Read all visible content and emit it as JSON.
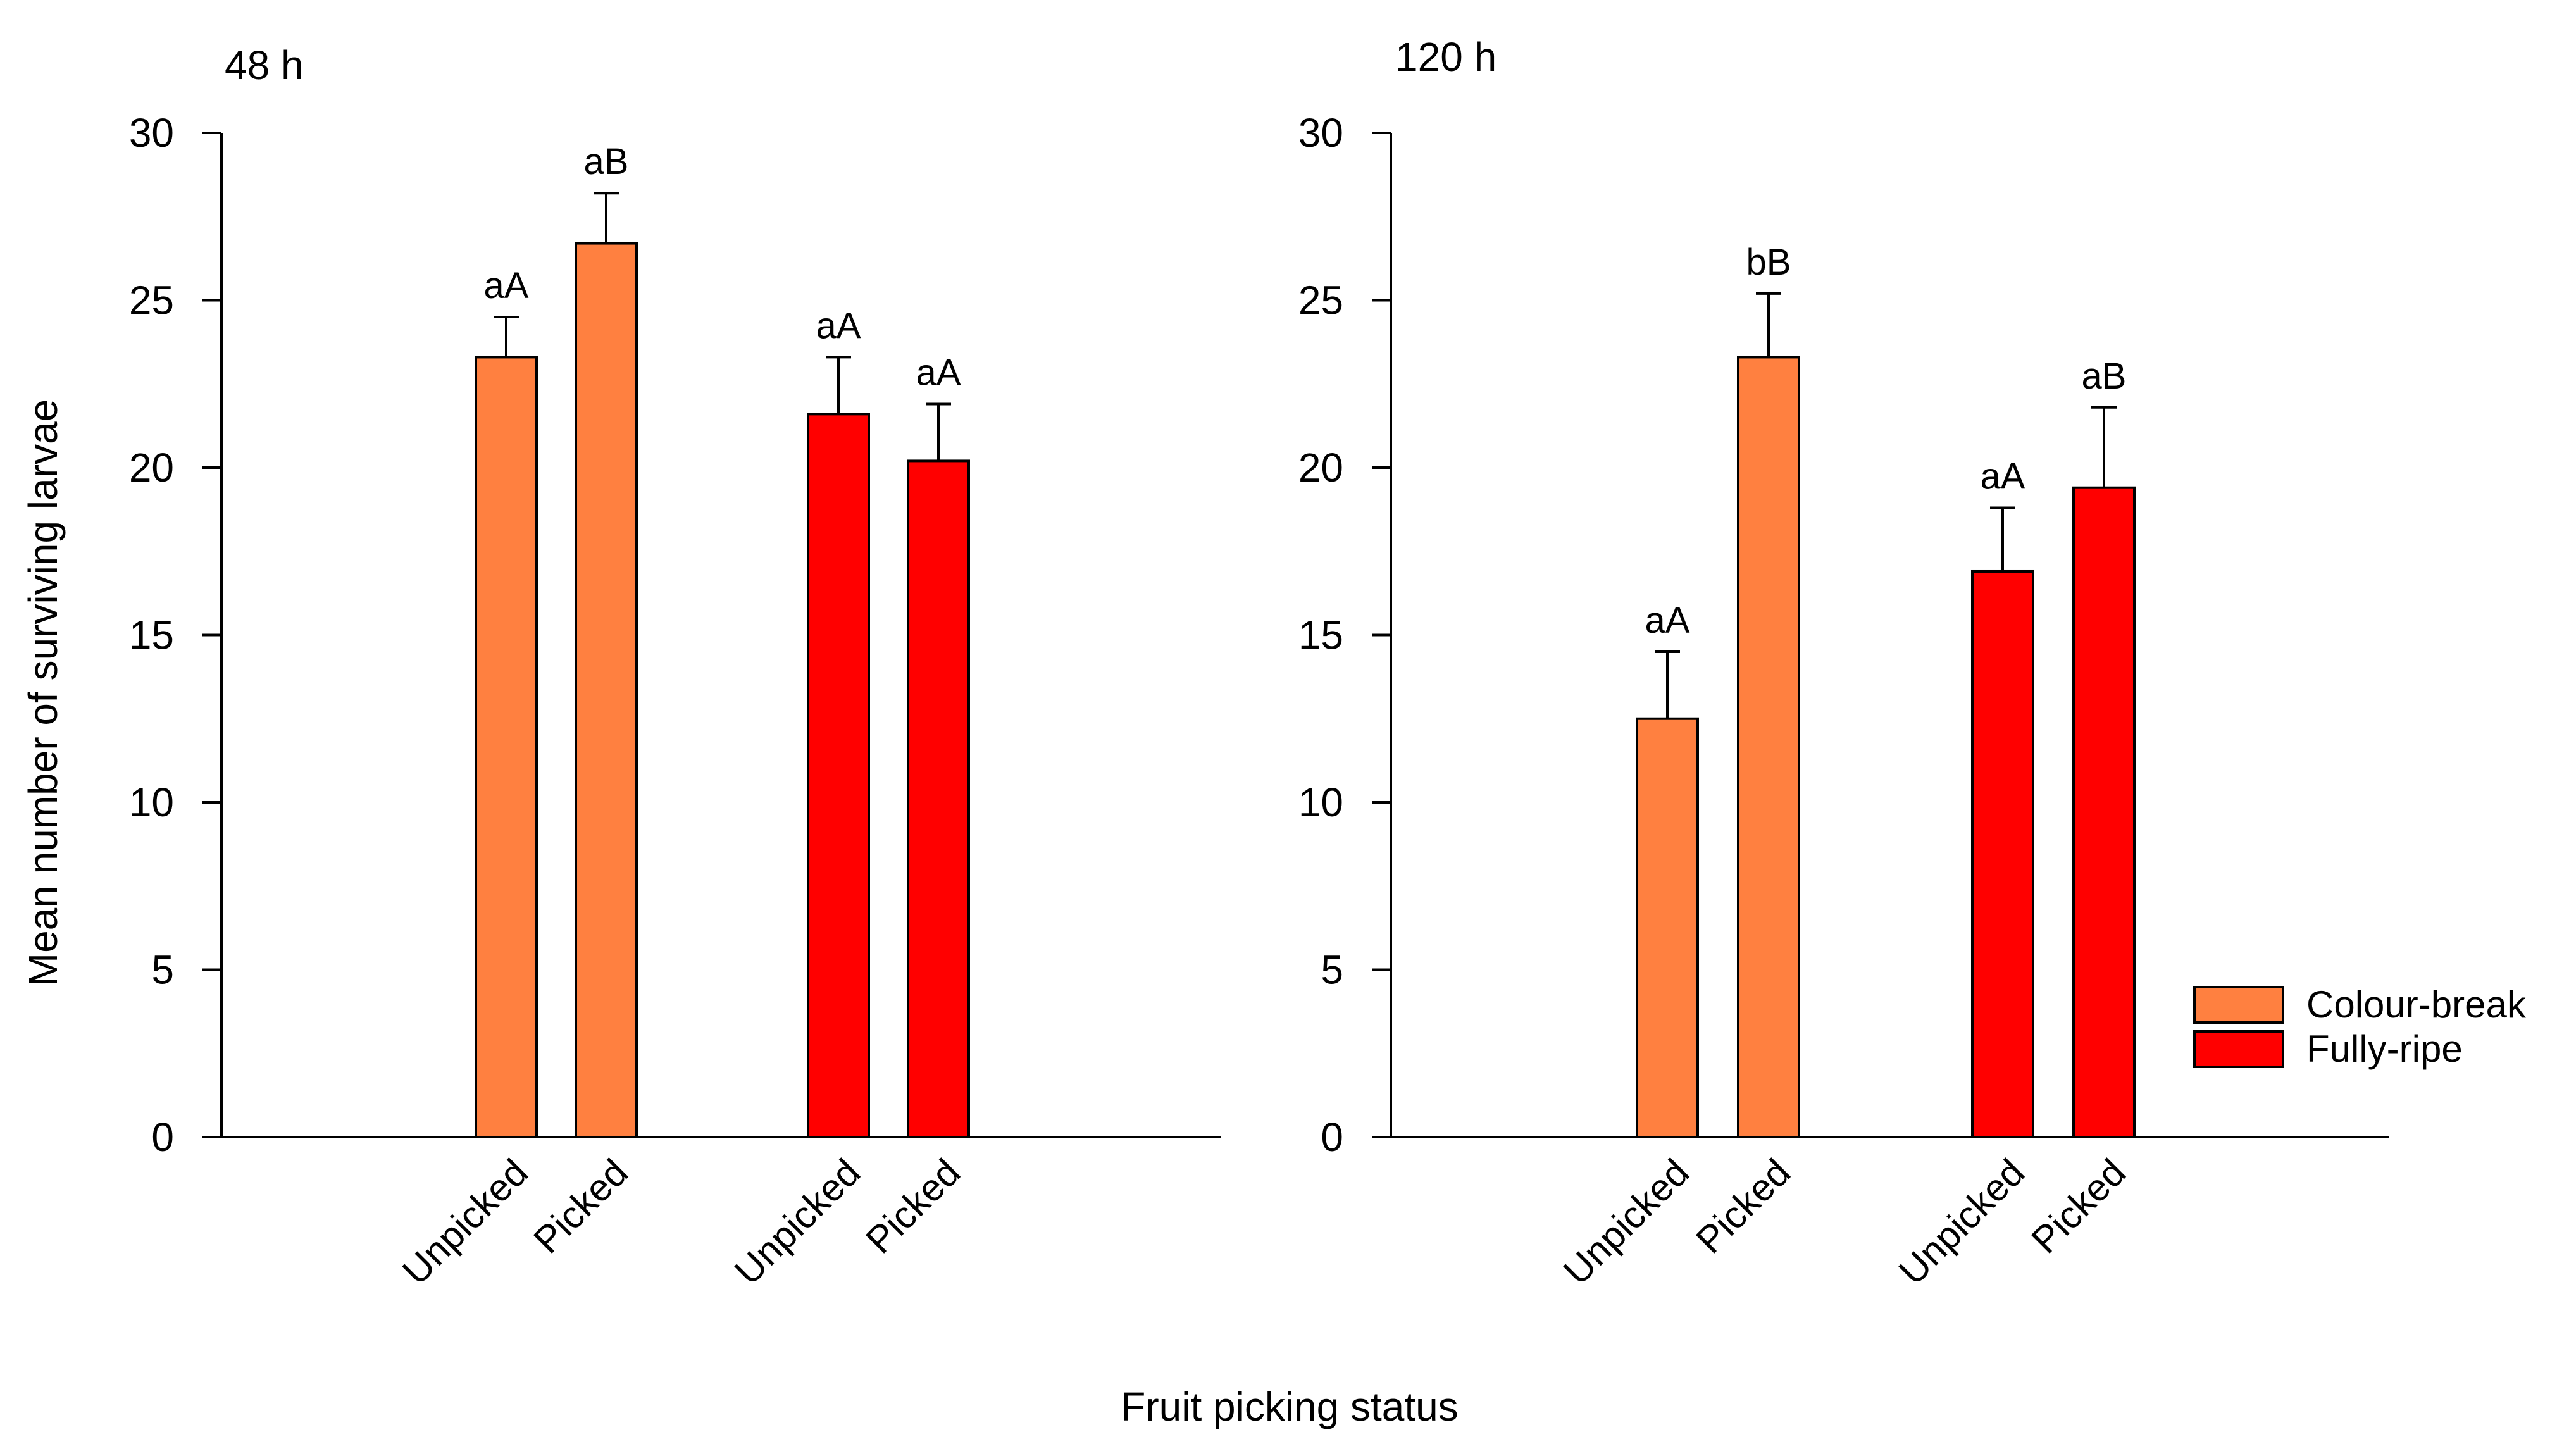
{
  "figure": {
    "ylabel": "Mean number of surviving larvae",
    "xlabel": "Fruit picking status"
  },
  "legend": {
    "items": [
      {
        "label": "Colour-break",
        "color": "#FF8040"
      },
      {
        "label": "Fully-ripe",
        "color": "#FF0000"
      }
    ]
  },
  "colors": {
    "colour_break": "#FF8040",
    "fully_ripe": "#FF0000",
    "axis": "#000000"
  },
  "chart_data": [
    {
      "type": "bar",
      "title": "48 h",
      "ylim": [
        0,
        30
      ],
      "yticks": [
        0,
        5,
        10,
        15,
        20,
        25,
        30
      ],
      "grid": false,
      "categories": [
        "Unpicked",
        "Picked",
        "Unpicked",
        "Picked"
      ],
      "series_of_bar": [
        "Colour-break",
        "Colour-break",
        "Fully-ripe",
        "Fully-ripe"
      ],
      "values": [
        23.3,
        26.7,
        21.6,
        20.2
      ],
      "errors": [
        1.2,
        1.5,
        1.7,
        1.7
      ],
      "labels": [
        "aA",
        "aB",
        "aA",
        "aA"
      ]
    },
    {
      "type": "bar",
      "title": "120 h",
      "ylim": [
        0,
        30
      ],
      "yticks": [
        0,
        5,
        10,
        15,
        20,
        25,
        30
      ],
      "grid": false,
      "categories": [
        "Unpicked",
        "Picked",
        "Unpicked",
        "Picked"
      ],
      "series_of_bar": [
        "Colour-break",
        "Colour-break",
        "Fully-ripe",
        "Fully-ripe"
      ],
      "values": [
        12.5,
        23.3,
        16.9,
        19.4
      ],
      "errors": [
        2.0,
        1.9,
        1.9,
        2.4
      ],
      "labels": [
        "aA",
        "bB",
        "aA",
        "aB"
      ]
    }
  ]
}
